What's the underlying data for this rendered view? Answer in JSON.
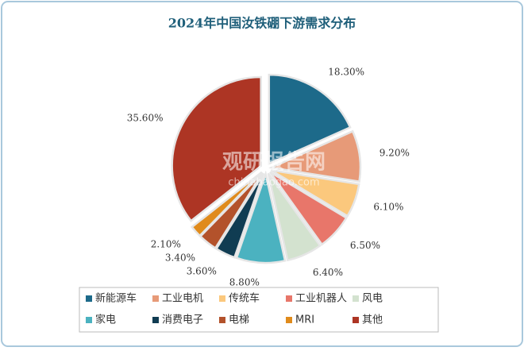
{
  "chart_data": {
    "type": "pie",
    "title": "2024年中国汝铁硼下游需求分布",
    "categories": [
      "新能源车",
      "工业电机",
      "传统车",
      "工业机器人",
      "风电",
      "家电",
      "消费电子",
      "电梯",
      "MRI",
      "其他"
    ],
    "values": [
      18.3,
      9.2,
      6.1,
      6.5,
      6.4,
      8.8,
      3.6,
      3.4,
      2.1,
      35.6
    ],
    "value_labels": [
      "18.30%",
      "9.20%",
      "6.10%",
      "6.50%",
      "6.40%",
      "8.80%",
      "3.60%",
      "3.40%",
      "2.10%",
      "35.60%"
    ],
    "colors": [
      "#1d6a8a",
      "#e79a78",
      "#fbc87d",
      "#e8766a",
      "#d3e2cf",
      "#4bb2c0",
      "#103c52",
      "#b3522b",
      "#e08b1c",
      "#ad3524"
    ],
    "watermark": {
      "title": "观研报告网",
      "url": "chinabaogao.com"
    }
  }
}
